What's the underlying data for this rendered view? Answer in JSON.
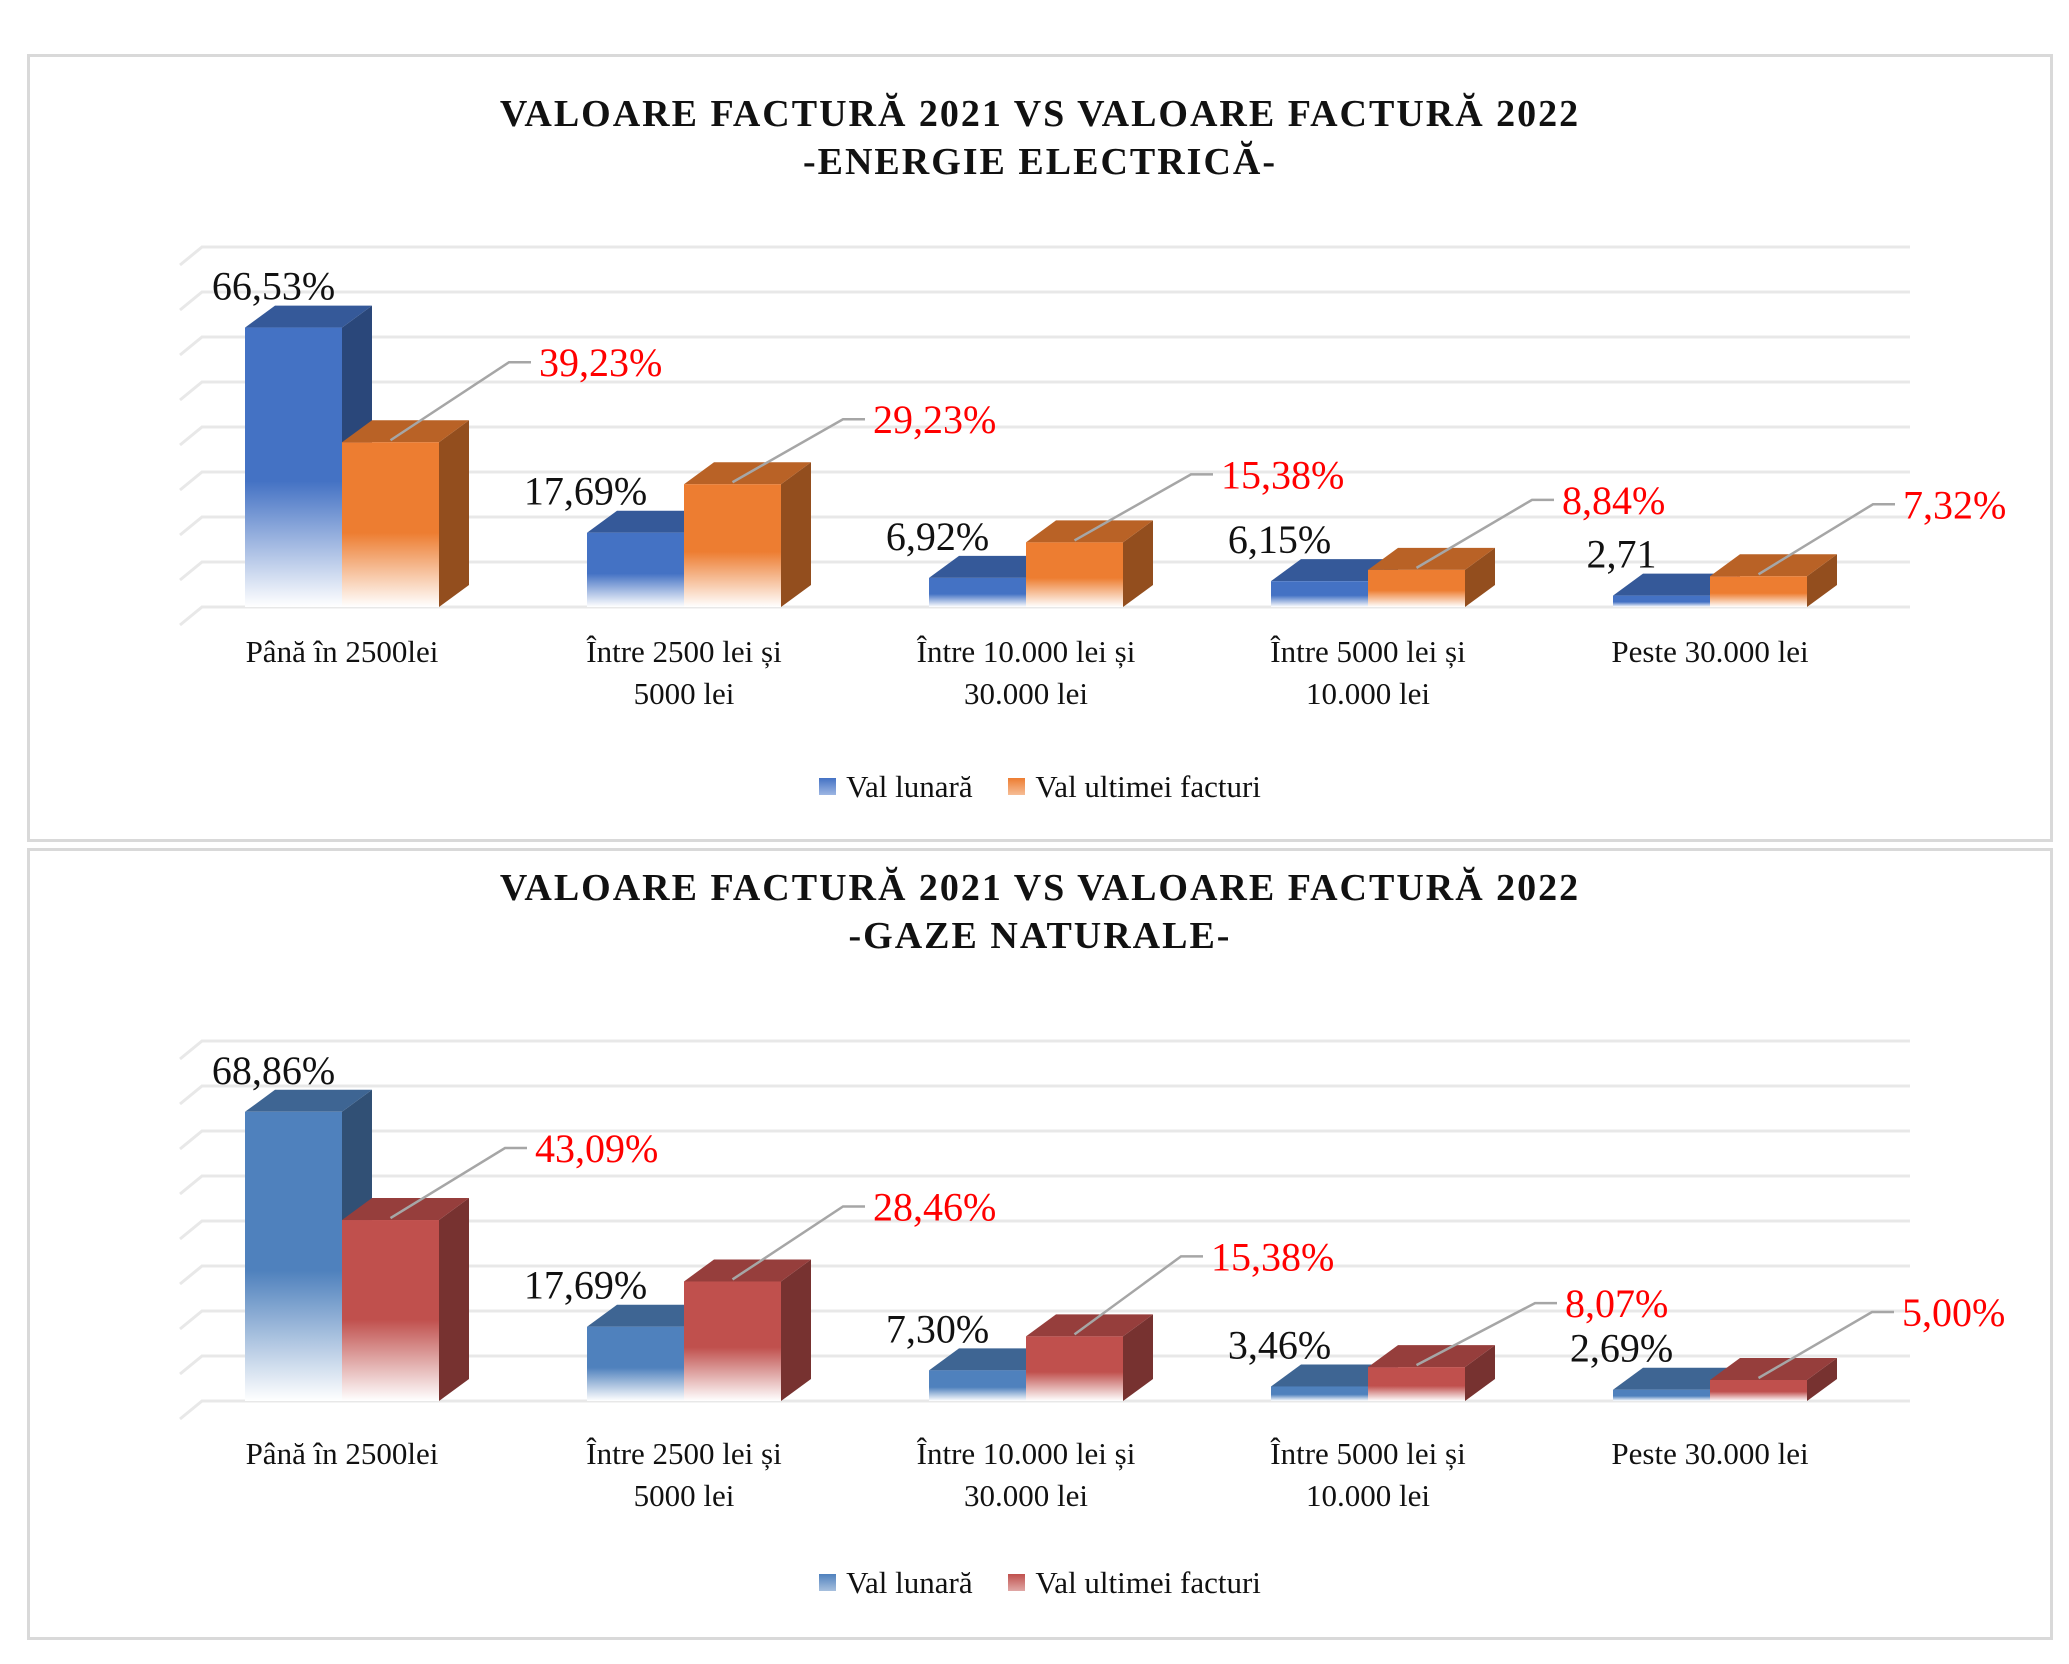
{
  "chart_data": [
    {
      "type": "bar",
      "title": "VALOARE FACTURĂ 2021 VS VALOARE FACTURĂ 2022",
      "subtitle": "-ENERGIE ELECTRICĂ-",
      "categories": [
        "Până în 2500lei",
        "Între 2500 lei și 5000 lei",
        "Între 10.000 lei și 30.000 lei",
        "Între 5000 lei și 10.000 lei",
        "Peste 30.000 lei"
      ],
      "series": [
        {
          "name": "Val lunară",
          "values": [
            66.53,
            17.69,
            6.92,
            6.15,
            2.71
          ],
          "labels": [
            "66,53%",
            "17,69%",
            "6,92%",
            "6,15%",
            "2,71"
          ],
          "color": "#4472c4",
          "label_color": "#111111"
        },
        {
          "name": "Val ultimei facturi",
          "values": [
            39.23,
            29.23,
            15.38,
            8.84,
            7.32
          ],
          "labels": [
            "39,23%",
            "29,23%",
            "15,38%",
            "8,84%",
            "7,32%"
          ],
          "color": "#ed7d31",
          "label_color": "#ff0000"
        }
      ],
      "ylim": [
        0,
        70
      ],
      "grid": true,
      "legend": "bottom"
    },
    {
      "type": "bar",
      "title": "VALOARE FACTURĂ 2021 VS VALOARE FACTURĂ 2022",
      "subtitle": "-GAZE NATURALE-",
      "categories": [
        "Până în 2500lei",
        "Între 2500 lei și 5000 lei",
        "Între 10.000 lei și 30.000 lei",
        "Între 5000 lei și 10.000 lei",
        "Peste 30.000 lei"
      ],
      "series": [
        {
          "name": "Val lunară",
          "values": [
            68.86,
            17.69,
            7.3,
            3.46,
            2.69
          ],
          "labels": [
            "68,86%",
            "17,69%",
            "7,30%",
            "3,46%",
            "2,69%"
          ],
          "color": "#4f81bd",
          "label_color": "#111111"
        },
        {
          "name": "Val ultimei facturi",
          "values": [
            43.09,
            28.46,
            15.38,
            8.07,
            5.0
          ],
          "labels": [
            "43,09%",
            "28,46%",
            "15,38%",
            "8,07%",
            "5,00%"
          ],
          "color": "#c0504d",
          "label_color": "#ff0000"
        }
      ],
      "ylim": [
        0,
        70
      ],
      "grid": true,
      "legend": "bottom"
    }
  ]
}
